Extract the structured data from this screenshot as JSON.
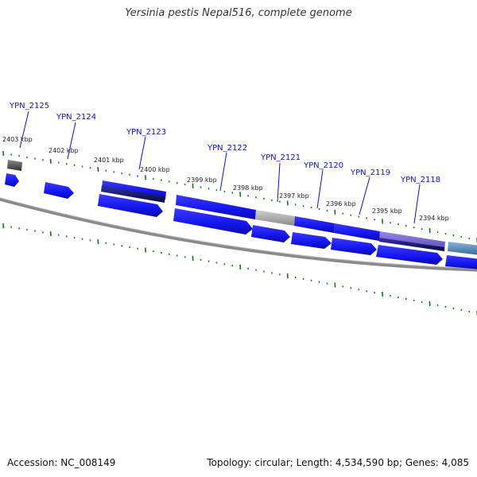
{
  "title": "Yersinia pestis Nepal516, complete genome",
  "footer": {
    "accession": "Accession: NC_008149",
    "summary": "Topology: circular; Length: 4,534,590 bp; Genes: 4,085"
  },
  "colors": {
    "gene_blue": "#1a1aee",
    "gene_dark": "#0a0a66",
    "gene_purple": "#7766cc",
    "gene_gray": "#aaaaaa",
    "gene_steel": "#5588bb",
    "backbone": "#888888",
    "tick_green": "#0a7a0a",
    "label_blue": "#1010cc"
  },
  "scale_labels": [
    "2403 kbp",
    "2402 kbp",
    "2401 kbp",
    "2400 kbp",
    "2399 kbp",
    "2398 kbp",
    "2397 kbp",
    "2396 kbp",
    "2395 kbp",
    "2394 kbp"
  ],
  "gene_labels": [
    "YPN_2125",
    "YPN_2124",
    "YPN_2123",
    "YPN_2122",
    "YPN_2121",
    "YPN_2120",
    "YPN_2119",
    "YPN_2118"
  ]
}
